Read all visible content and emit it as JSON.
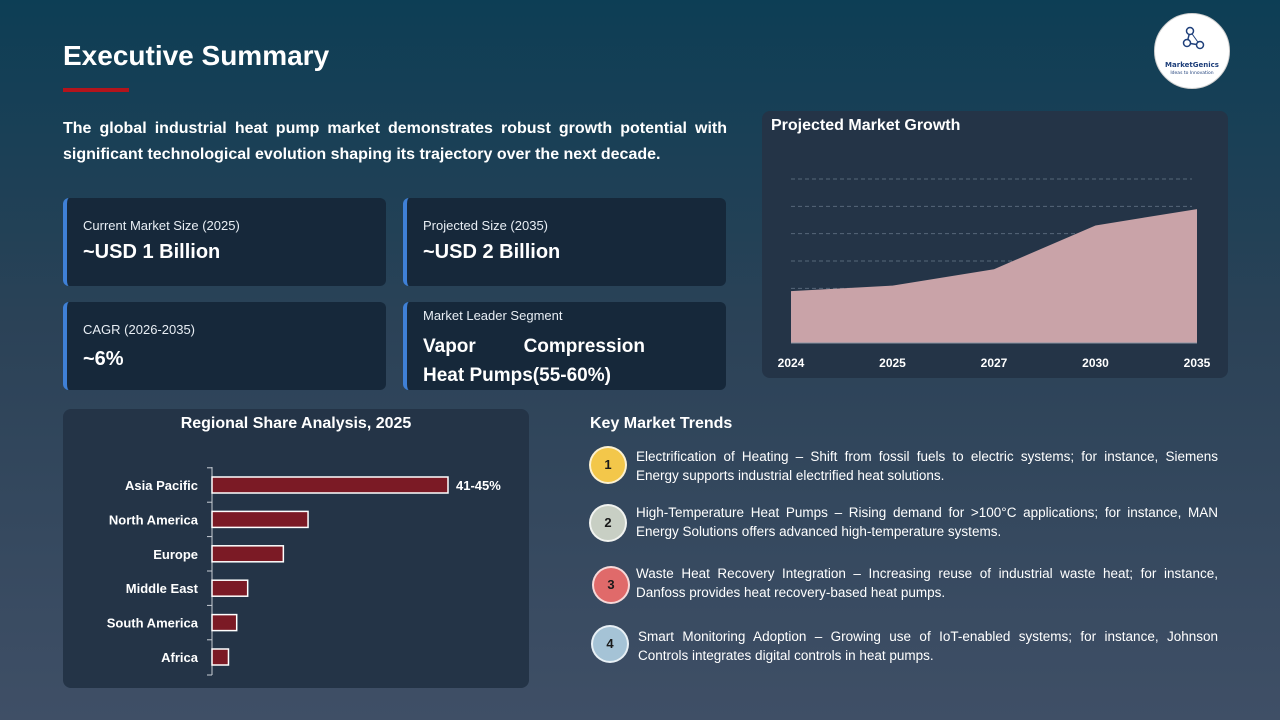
{
  "header": {
    "title": "Executive Summary"
  },
  "logo": {
    "name": "MarketGenics",
    "tagline": "Ideas to Innovation"
  },
  "intro": "The global industrial heat pump market demonstrates robust growth potential with significant technological evolution shaping its trajectory over the next decade.",
  "cards": [
    {
      "label": "Current Market Size (2025)",
      "value": "~USD 1 Billion"
    },
    {
      "label": "Projected Size (2035)",
      "value": "~USD 2 Billion"
    },
    {
      "label": "CAGR (2026-2035)",
      "value": "~6%"
    },
    {
      "label": "Market Leader Segment",
      "value": "Vapor Compression Heat Pumps(55-60%)"
    }
  ],
  "colors": {
    "accent_red": "#b3141c",
    "bar_fill": "#7b1a25",
    "area_fill": "#c9a3a8",
    "card_border": "#3f80d6"
  },
  "chart_data": [
    {
      "type": "area",
      "title": "Projected Market Growth",
      "x": [
        "2024",
        "2025",
        "2027",
        "2030",
        "2035"
      ],
      "values": [
        0.95,
        1.05,
        1.35,
        2.15,
        2.45
      ],
      "ylim": [
        0,
        3
      ],
      "grid": true,
      "xlabel": "",
      "ylabel": ""
    },
    {
      "type": "bar",
      "orientation": "horizontal",
      "title": "Regional Share Analysis, 2025",
      "categories": [
        "Asia Pacific",
        "North America",
        "Europe",
        "Middle East",
        "South America",
        "Africa"
      ],
      "values": [
        43,
        17.5,
        13,
        6.5,
        4.5,
        3
      ],
      "data_labels": [
        "41-45%",
        "",
        "",
        "",
        "",
        ""
      ],
      "xlim": [
        0,
        85
      ]
    }
  ],
  "trends": {
    "title": "Key Market Trends",
    "items": [
      {
        "num": "1",
        "color": "#f3c74a",
        "text": "Electrification of Heating – Shift from fossil fuels to electric systems; for instance, Siemens Energy supports industrial electrified heat solutions."
      },
      {
        "num": "2",
        "color": "#c8cfc4",
        "text": "High-Temperature Heat Pumps – Rising demand for >100°C applications; for instance, MAN Energy Solutions offers advanced high-temperature systems."
      },
      {
        "num": "3",
        "color": "#e06a6a",
        "text": "Waste Heat Recovery Integration – Increasing reuse of industrial waste heat; for instance, Danfoss provides heat recovery-based heat pumps."
      },
      {
        "num": "4",
        "color": "#a5c3d6",
        "text": "Smart Monitoring Adoption – Growing use of IoT-enabled systems; for instance, Johnson Controls integrates digital controls in heat pumps."
      }
    ]
  }
}
